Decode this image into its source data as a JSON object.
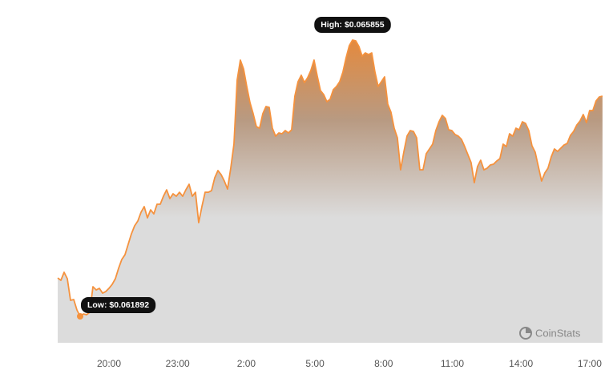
{
  "chart_data": {
    "type": "area",
    "annotations": [
      "High: $0.065855",
      "Low: $0.061892"
    ],
    "watermark": "CoinStats",
    "color": "#f5923e",
    "xlim": [
      17.76,
      41.67
    ],
    "ylim": [
      0.061513,
      0.0662
    ],
    "xticks": [
      {
        "value": 20,
        "label": "20:00"
      },
      {
        "value": 23,
        "label": "23:00"
      },
      {
        "value": 26,
        "label": "2:00"
      },
      {
        "value": 29,
        "label": "5:00"
      },
      {
        "value": 32,
        "label": "8:00"
      },
      {
        "value": 35,
        "label": "11:00"
      },
      {
        "value": 38,
        "label": "14:00"
      },
      {
        "value": 41,
        "label": "17:00"
      }
    ],
    "x": [
      17.76,
      17.9,
      18.04,
      18.18,
      18.32,
      18.46,
      18.6,
      18.74,
      18.88,
      19.02,
      19.16,
      19.3,
      19.44,
      19.58,
      19.72,
      19.86,
      20,
      20.14,
      20.28,
      20.42,
      20.56,
      20.7,
      20.84,
      20.98,
      21.12,
      21.26,
      21.4,
      21.54,
      21.68,
      21.82,
      21.96,
      22.1,
      22.24,
      22.38,
      22.52,
      22.66,
      22.8,
      22.94,
      23.08,
      23.22,
      23.36,
      23.5,
      23.64,
      23.78,
      23.92,
      24.06,
      24.2,
      24.34,
      24.48,
      24.62,
      24.76,
      24.9,
      25.04,
      25.18,
      25.32,
      25.46,
      25.6,
      25.74,
      25.88,
      26.02,
      26.16,
      26.3,
      26.44,
      26.58,
      26.72,
      26.86,
      27,
      27.14,
      27.28,
      27.42,
      27.56,
      27.7,
      27.84,
      27.98,
      28.12,
      28.26,
      28.4,
      28.54,
      28.68,
      28.82,
      28.96,
      29.1,
      29.24,
      29.38,
      29.52,
      29.66,
      29.8,
      29.94,
      30.08,
      30.22,
      30.36,
      30.5,
      30.64,
      30.78,
      30.92,
      31.06,
      31.2,
      31.34,
      31.48,
      31.62,
      31.76,
      31.9,
      32.04,
      32.18,
      32.32,
      32.46,
      32.6,
      32.74,
      32.88,
      33.02,
      33.16,
      33.3,
      33.44,
      33.58,
      33.72,
      33.86,
      34,
      34.14,
      34.28,
      34.42,
      34.56,
      34.7,
      34.84,
      34.98,
      35.12,
      35.26,
      35.4,
      35.54,
      35.68,
      35.82,
      35.96,
      36.1,
      36.24,
      36.38,
      36.52,
      36.66,
      36.8,
      36.94,
      37.08,
      37.22,
      37.36,
      37.5,
      37.64,
      37.78,
      37.92,
      38.06,
      38.2,
      38.34,
      38.48,
      38.62,
      38.76,
      38.9,
      39.04,
      39.18,
      39.32,
      39.46,
      39.6,
      39.74,
      39.88,
      40.02,
      40.16,
      40.3,
      40.44,
      40.58,
      40.72,
      40.86,
      41,
      41.14,
      41.28,
      41.42,
      41.56
    ],
    "values": [
      0.062443,
      0.062409,
      0.062524,
      0.062432,
      0.062122,
      0.062133,
      0.061984,
      0.061892,
      0.061926,
      0.061915,
      0.061949,
      0.062317,
      0.062271,
      0.062294,
      0.062225,
      0.062248,
      0.062294,
      0.062351,
      0.062432,
      0.062581,
      0.062708,
      0.062776,
      0.062926,
      0.063075,
      0.06319,
      0.063259,
      0.063385,
      0.063466,
      0.063305,
      0.06342,
      0.063362,
      0.0635,
      0.0635,
      0.063615,
      0.063707,
      0.063581,
      0.06365,
      0.063615,
      0.063672,
      0.063615,
      0.063707,
      0.063787,
      0.063615,
      0.063672,
      0.063236,
      0.063466,
      0.063672,
      0.063672,
      0.063695,
      0.063879,
      0.063983,
      0.063925,
      0.063833,
      0.063718,
      0.064017,
      0.064362,
      0.065281,
      0.065568,
      0.065441,
      0.065189,
      0.064959,
      0.064798,
      0.064614,
      0.064591,
      0.064798,
      0.064902,
      0.06489,
      0.064591,
      0.064477,
      0.064523,
      0.064511,
      0.064557,
      0.064523,
      0.064568,
      0.065051,
      0.065258,
      0.06535,
      0.065246,
      0.065315,
      0.065419,
      0.065568,
      0.065338,
      0.065131,
      0.065074,
      0.064971,
      0.065005,
      0.065143,
      0.065189,
      0.065258,
      0.065396,
      0.065602,
      0.065775,
      0.065855,
      0.065844,
      0.065763,
      0.065625,
      0.065671,
      0.065648,
      0.065671,
      0.065396,
      0.065189,
      0.065258,
      0.065327,
      0.064936,
      0.064821,
      0.064591,
      0.064454,
      0.063994,
      0.064247,
      0.064477,
      0.064557,
      0.064545,
      0.064454,
      0.063994,
      0.063994,
      0.064224,
      0.064293,
      0.064362,
      0.064557,
      0.064683,
      0.064775,
      0.064729,
      0.064568,
      0.064557,
      0.0645,
      0.064477,
      0.064431,
      0.064327,
      0.064212,
      0.064098,
      0.06381,
      0.06404,
      0.064132,
      0.063994,
      0.064017,
      0.064063,
      0.064075,
      0.06412,
      0.064155,
      0.064362,
      0.064327,
      0.064511,
      0.064477,
      0.064591,
      0.064568,
      0.064683,
      0.06466,
      0.064557,
      0.064339,
      0.064247,
      0.06404,
      0.063833,
      0.063948,
      0.064017,
      0.064178,
      0.064293,
      0.064258,
      0.064304,
      0.06435,
      0.064373,
      0.064488,
      0.064545,
      0.064637,
      0.064695,
      0.064787,
      0.064672,
      0.064844,
      0.064844,
      0.064982,
      0.065039,
      0.065051
    ]
  }
}
